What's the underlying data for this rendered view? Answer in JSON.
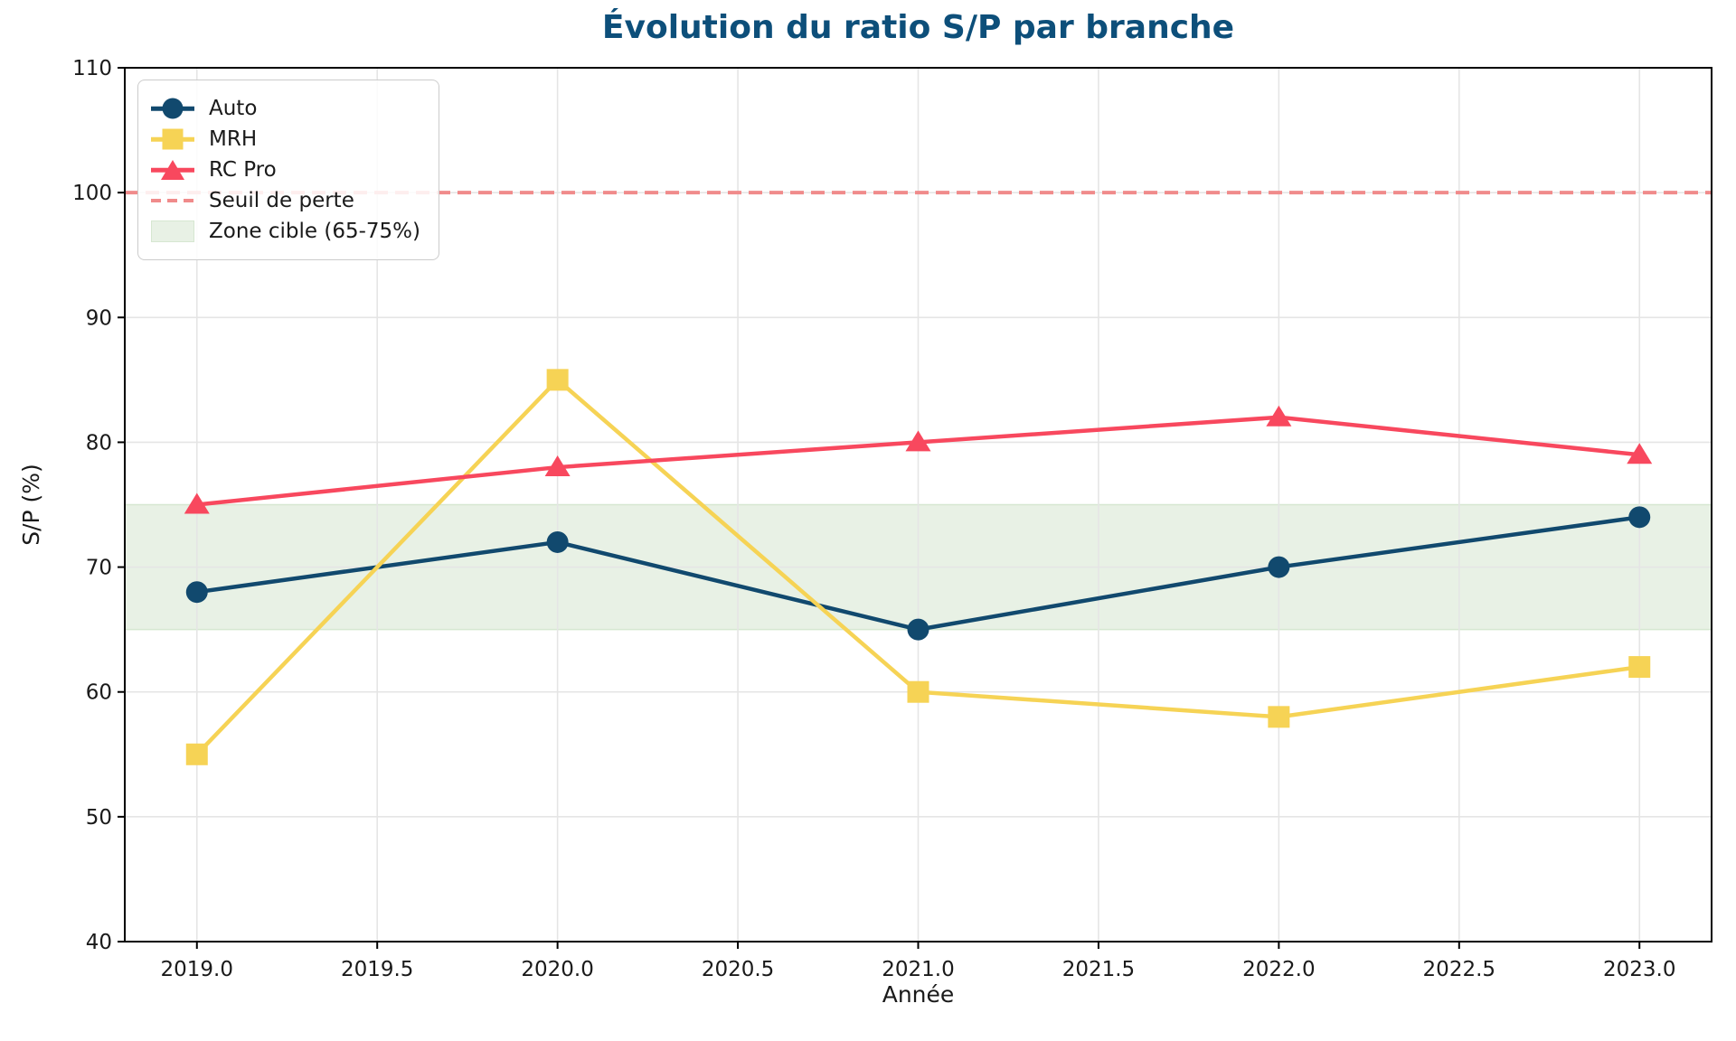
{
  "chart_data": {
    "type": "line",
    "title": "Évolution du ratio S/P par branche",
    "xlabel": "Année",
    "ylabel": "S/P (%)",
    "x": [
      2019,
      2020,
      2021,
      2022,
      2023
    ],
    "series": [
      {
        "name": "Auto",
        "values": [
          68,
          72,
          65,
          70,
          74
        ],
        "color": "#11496e",
        "marker": "circle"
      },
      {
        "name": "MRH",
        "values": [
          55,
          85,
          60,
          58,
          62
        ],
        "color": "#f6d355",
        "marker": "square"
      },
      {
        "name": "RC Pro",
        "values": [
          75,
          78,
          80,
          82,
          79
        ],
        "color": "#f8485e",
        "marker": "triangle"
      }
    ],
    "threshold": {
      "label": "Seuil de perte",
      "value": 100,
      "color": "#f08b8b",
      "style": "dashed"
    },
    "band": {
      "label": "Zone cible (65-75%)",
      "from": 65,
      "to": 75,
      "fill": "#e8f1e5",
      "edge": "#d6e7d1"
    },
    "xlim": [
      2018.8,
      2023.2
    ],
    "ylim": [
      40,
      110
    ],
    "xticks": [
      {
        "label": "2019.0",
        "value": 2019.0
      },
      {
        "label": "2019.5",
        "value": 2019.5
      },
      {
        "label": "2020.0",
        "value": 2020.0
      },
      {
        "label": "2020.5",
        "value": 2020.5
      },
      {
        "label": "2021.0",
        "value": 2021.0
      },
      {
        "label": "2021.5",
        "value": 2021.5
      },
      {
        "label": "2022.0",
        "value": 2022.0
      },
      {
        "label": "2022.5",
        "value": 2022.5
      },
      {
        "label": "2023.0",
        "value": 2023.0
      }
    ],
    "yticks": [
      40,
      50,
      60,
      70,
      80,
      90,
      100,
      110
    ],
    "grid": true,
    "legend_position": "upper-left",
    "colors": {
      "title": "#0d4f7a",
      "grid": "#e5e5e5",
      "axis": "#000000",
      "tick_text": "#1a1a1a",
      "background": "#ffffff"
    }
  }
}
